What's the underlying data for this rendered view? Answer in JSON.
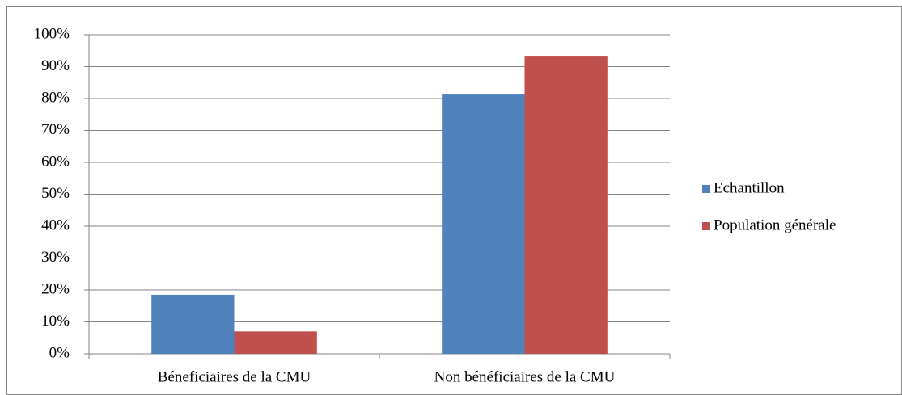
{
  "chart_data": {
    "type": "bar",
    "categories": [
      "Béneficiaires de la CMU",
      "Non bénéficiaires de la CMU"
    ],
    "series": [
      {
        "name": "Echantillon",
        "color": "#4f81bd",
        "values": [
          18.5,
          81.5
        ]
      },
      {
        "name": "Population générale",
        "color": "#c0504d",
        "values": [
          7,
          93.4
        ]
      }
    ],
    "ylim": [
      0,
      100
    ],
    "yticks": [
      {
        "value": 0,
        "label": "0%"
      },
      {
        "value": 10,
        "label": "10%"
      },
      {
        "value": 20,
        "label": "20%"
      },
      {
        "value": 30,
        "label": "30%"
      },
      {
        "value": 40,
        "label": "40%"
      },
      {
        "value": 50,
        "label": "50%"
      },
      {
        "value": 60,
        "label": "60%"
      },
      {
        "value": 70,
        "label": "70%"
      },
      {
        "value": 80,
        "label": "80%"
      },
      {
        "value": 90,
        "label": "90%"
      },
      {
        "value": 100,
        "label": "100%"
      }
    ],
    "grid": true,
    "legend": "right"
  }
}
